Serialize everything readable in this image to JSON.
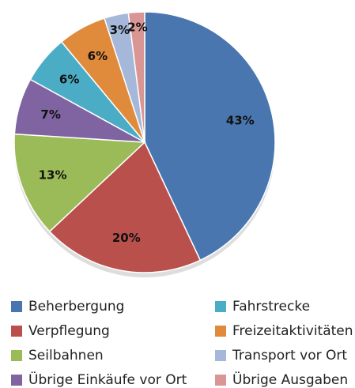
{
  "chart_data": {
    "type": "pie",
    "categories": [
      "Beherbergung",
      "Verpflegung",
      "Seilbahnen",
      "Übrige Einkäufe vor Ort",
      "Fahrstrecke",
      "Freizeitaktivitäten",
      "Transport vor Ort",
      "Übrige Ausgaben"
    ],
    "values": [
      43,
      20,
      13,
      7,
      6,
      6,
      3,
      2
    ],
    "value_labels": [
      "43%",
      "20%",
      "13%",
      "7%",
      "6%",
      "6%",
      "3%",
      "2%"
    ],
    "colors": [
      "#4a76b0",
      "#b9504c",
      "#9bbb59",
      "#8064a2",
      "#4bacc6",
      "#e08a3c",
      "#a5b8d9",
      "#d99694"
    ],
    "legend": "bottom"
  }
}
